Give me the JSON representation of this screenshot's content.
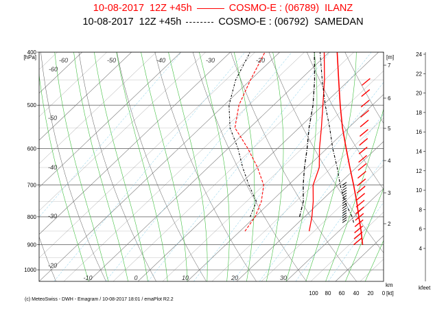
{
  "title": {
    "station1": {
      "date": "10-08-2017",
      "run": "12Z +45h",
      "model": "COSMO-E : (06789)",
      "name": "ILANZ",
      "color": "#ff0000"
    },
    "station2": {
      "date": "10-08-2017",
      "run": "12Z +45h",
      "model": "COSMO-E : (06792)",
      "name": "SAMEDAN",
      "color": "#000000"
    }
  },
  "credit": "(c) MeteoSwiss - DWH - Emagram / 10-08-2017  18:01 / emaPlot R2.2",
  "chart_data": {
    "type": "line",
    "yaxis": {
      "label": "[hPa]",
      "ticks": [
        400,
        500,
        600,
        700,
        800,
        900,
        1000
      ],
      "scale": "log",
      "range": [
        1050,
        400
      ]
    },
    "xaxis": {
      "ticks": [
        "-10",
        "0",
        "10",
        "20",
        "30"
      ],
      "range": [
        -30,
        40
      ]
    },
    "isotherm_labels": [
      "-60",
      "-60",
      "-50",
      "-40",
      "-30",
      "-20",
      "-50",
      "-40",
      "-30",
      "-20",
      "-20",
      "10",
      "20",
      "30"
    ],
    "height_axis": {
      "label": "[m]",
      "ticks": [
        "7",
        "6",
        "5",
        "4",
        "3",
        "2"
      ]
    },
    "feet_axis": {
      "label": "kfeet",
      "ticks": [
        "24",
        "22",
        "20",
        "18",
        "16",
        "14",
        "12",
        "10",
        "8",
        "6",
        "4"
      ]
    },
    "humidity_axis": {
      "unit": "km",
      "ticks": [
        "100",
        "80",
        "60",
        "40",
        "20",
        "0"
      ],
      "label": "[kt]"
    },
    "series": [
      {
        "name": "ILANZ",
        "color": "#ff0000",
        "temperature": [
          [
            850,
            14
          ],
          [
            800,
            11.5
          ],
          [
            750,
            8.5
          ],
          [
            700,
            5
          ],
          [
            650,
            2.5
          ],
          [
            600,
            -1.5
          ],
          [
            550,
            -5.5
          ],
          [
            500,
            -10
          ],
          [
            450,
            -15
          ],
          [
            400,
            -21
          ]
        ],
        "dewpoint": [
          [
            850,
            1
          ],
          [
            800,
            0
          ],
          [
            750,
            -2
          ],
          [
            700,
            -5
          ],
          [
            650,
            -10
          ],
          [
            600,
            -16
          ],
          [
            550,
            -23
          ],
          [
            500,
            -27
          ],
          [
            450,
            -30
          ],
          [
            400,
            -33
          ]
        ]
      },
      {
        "name": "SAMEDAN",
        "color": "#000000",
        "temperature": [
          [
            800,
            9
          ],
          [
            750,
            6.5
          ],
          [
            700,
            3
          ],
          [
            650,
            -0.5
          ],
          [
            600,
            -4
          ],
          [
            550,
            -8
          ],
          [
            500,
            -12
          ],
          [
            450,
            -17
          ],
          [
            400,
            -23
          ]
        ],
        "dewpoint": [
          [
            800,
            -1
          ],
          [
            750,
            -3
          ],
          [
            700,
            -8
          ],
          [
            650,
            -13
          ],
          [
            600,
            -18
          ],
          [
            550,
            -24
          ],
          [
            500,
            -29
          ],
          [
            450,
            -33
          ],
          [
            400,
            -36
          ]
        ]
      }
    ],
    "grid": true,
    "colors": {
      "isotherm": "#777777",
      "dry_adiabat": "#555555",
      "moist_adiabat": "#3fbf3f",
      "mixing_ratio": "#6ec6e6",
      "isobar": "#333333"
    }
  }
}
